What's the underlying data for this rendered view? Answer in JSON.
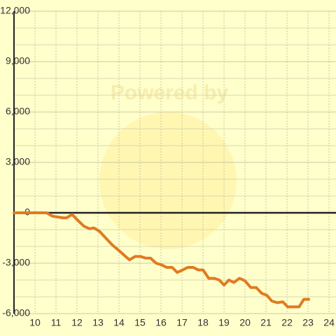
{
  "chart_data": {
    "type": "line",
    "watermark": "Powered by",
    "x": [
      9,
      10.55,
      10.83,
      11.33,
      11.5,
      11.77,
      12,
      12.33,
      12.6,
      12.8,
      13.07,
      13.33,
      13.67,
      14,
      14.27,
      14.5,
      14.77,
      15.03,
      15.27,
      15.5,
      15.77,
      16.03,
      16.27,
      16.53,
      16.77,
      17.03,
      17.27,
      17.53,
      17.77,
      18,
      18.27,
      18.53,
      18.77,
      19,
      19.23,
      19.47,
      19.73,
      20,
      20.27,
      20.53,
      20.8,
      21.03,
      21.27,
      21.53,
      21.8,
      22.03,
      22.33,
      22.57,
      22.8,
      23.03
    ],
    "series": [
      {
        "color": "#e07b20",
        "values": [
          0,
          0,
          -200,
          -300,
          -300,
          -100,
          -400,
          -800,
          -950,
          -900,
          -1100,
          -1450,
          -1900,
          -2250,
          -2550,
          -2800,
          -2600,
          -2600,
          -2700,
          -2700,
          -3000,
          -3100,
          -3250,
          -3250,
          -3550,
          -3400,
          -3250,
          -3250,
          -3400,
          -3400,
          -3900,
          -3900,
          -4000,
          -4300,
          -4000,
          -4150,
          -3900,
          -4050,
          -4450,
          -4450,
          -4800,
          -4900,
          -5250,
          -5350,
          -5300,
          -5600,
          -5600,
          -5600,
          -5150,
          -5150
        ]
      }
    ],
    "xlim": [
      9,
      24.33
    ],
    "xticks": [
      10,
      11,
      12,
      13,
      14,
      15,
      16,
      17,
      18,
      19,
      20,
      21,
      22,
      23,
      24
    ],
    "ylim": [
      -6000,
      12000
    ],
    "yticks": [
      {
        "value": -6000,
        "label": "-6,000"
      },
      {
        "value": -3000,
        "label": "-3,000"
      },
      0,
      {
        "value": 3000,
        "label": "3,000"
      },
      {
        "value": 6000,
        "label": "6,000"
      },
      {
        "value": 9000,
        "label": "9,000"
      },
      {
        "value": 12000,
        "label": "12,000"
      }
    ],
    "minor_yticks": [
      -5000,
      -4000,
      -2000,
      -1000,
      1000,
      2000,
      4000,
      5000,
      7000,
      8000,
      10000,
      11000
    ],
    "grid": true
  }
}
